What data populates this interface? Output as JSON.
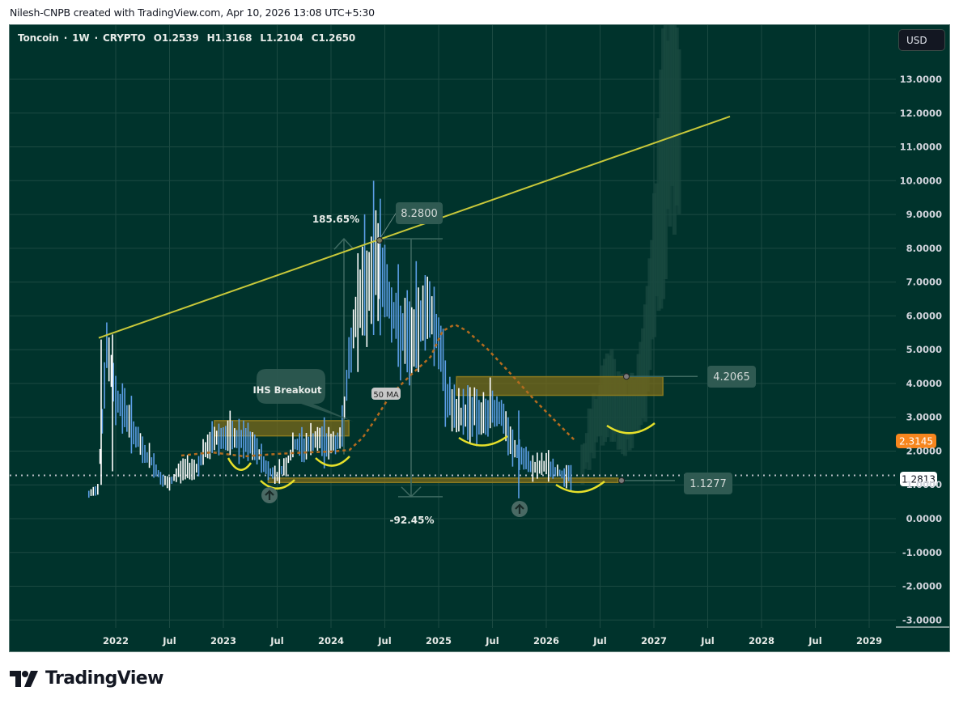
{
  "credit": "Nilesh-CNPB created with TradingView.com, Apr 10, 2026 13:08 UTC+5:30",
  "legend": {
    "symbol": "Toncoin",
    "interval": "1W",
    "exchange": "CRYPTO",
    "open": "O1.2539",
    "high": "H1.3168",
    "low": "L1.2104",
    "close": "C1.2650",
    "sep": "·"
  },
  "currency_button": "USD",
  "branding": "TradingView",
  "colors": {
    "background": "#00332c",
    "grid": "#1c4a42",
    "up_bar": "#ffffff",
    "down_bar": "#5b9ee6",
    "trendline": "#c8c83a",
    "zone_fill": "#7a6a1a",
    "ma_line": "#b36b1f",
    "current_price_tag": "#ffffff",
    "ma_price_tag": "#f7861e"
  },
  "chart_data": {
    "type": "bar",
    "title": "Toncoin · 1W · CRYPTO",
    "xlabel": "",
    "ylabel": "USD",
    "ylim": [
      -3,
      13.5
    ],
    "grid": true,
    "legend_position": "top-left",
    "x_ticks": [
      "2022",
      "Jul",
      "2023",
      "Jul",
      "2024",
      "Jul",
      "2025",
      "Jul",
      "2026",
      "Jul",
      "2027",
      "Jul",
      "2028",
      "Jul",
      "2029"
    ],
    "y_ticks": [
      "13.0000",
      "12.0000",
      "11.0000",
      "10.0000",
      "9.0000",
      "8.0000",
      "7.0000",
      "6.0000",
      "5.0000",
      "4.0000",
      "3.0000",
      "2.0000",
      "1.0000",
      "0.0000",
      "-1.0000",
      "-2.0000",
      "-3.0000"
    ],
    "ohlc_summary": {
      "open": 1.2539,
      "high": 1.3168,
      "low": 1.2104,
      "close": 1.265
    },
    "price_path": [
      {
        "t": "2021-10",
        "v": 0.7
      },
      {
        "t": "2021-11",
        "v": 0.9
      },
      {
        "t": "2021-12",
        "v": 5.0
      },
      {
        "t": "2022-01",
        "v": 3.6
      },
      {
        "t": "2022-02",
        "v": 3.2
      },
      {
        "t": "2022-03",
        "v": 2.6
      },
      {
        "t": "2022-04",
        "v": 2.0
      },
      {
        "t": "2022-05",
        "v": 1.7
      },
      {
        "t": "2022-06",
        "v": 1.2
      },
      {
        "t": "2022-07",
        "v": 1.0
      },
      {
        "t": "2022-08",
        "v": 1.4
      },
      {
        "t": "2022-09",
        "v": 1.5
      },
      {
        "t": "2022-10",
        "v": 1.5
      },
      {
        "t": "2022-11",
        "v": 2.0
      },
      {
        "t": "2022-12",
        "v": 2.4
      },
      {
        "t": "2023-01",
        "v": 2.4
      },
      {
        "t": "2023-02",
        "v": 2.4
      },
      {
        "t": "2023-03",
        "v": 2.3
      },
      {
        "t": "2023-04",
        "v": 2.2
      },
      {
        "t": "2023-05",
        "v": 1.9
      },
      {
        "t": "2023-06",
        "v": 1.4
      },
      {
        "t": "2023-07",
        "v": 1.3
      },
      {
        "t": "2023-08",
        "v": 1.6
      },
      {
        "t": "2023-09",
        "v": 2.2
      },
      {
        "t": "2023-10",
        "v": 2.1
      },
      {
        "t": "2023-11",
        "v": 2.3
      },
      {
        "t": "2023-12",
        "v": 2.3
      },
      {
        "t": "2024-01",
        "v": 2.2
      },
      {
        "t": "2024-02",
        "v": 2.3
      },
      {
        "t": "2024-03",
        "v": 4.5
      },
      {
        "t": "2024-04",
        "v": 6.5
      },
      {
        "t": "2024-05",
        "v": 6.8
      },
      {
        "t": "2024-06",
        "v": 7.8
      },
      {
        "t": "2024-07",
        "v": 7.0
      },
      {
        "t": "2024-08",
        "v": 6.0
      },
      {
        "t": "2024-09",
        "v": 5.4
      },
      {
        "t": "2024-10",
        "v": 5.2
      },
      {
        "t": "2024-11",
        "v": 6.0
      },
      {
        "t": "2024-12",
        "v": 6.3
      },
      {
        "t": "2025-01",
        "v": 5.3
      },
      {
        "t": "2025-02",
        "v": 3.6
      },
      {
        "t": "2025-03",
        "v": 3.0
      },
      {
        "t": "2025-04",
        "v": 3.1
      },
      {
        "t": "2025-05",
        "v": 3.2
      },
      {
        "t": "2025-06",
        "v": 2.9
      },
      {
        "t": "2025-07",
        "v": 3.3
      },
      {
        "t": "2025-08",
        "v": 3.1
      },
      {
        "t": "2025-09",
        "v": 2.2
      },
      {
        "t": "2025-10",
        "v": 1.9
      },
      {
        "t": "2025-11",
        "v": 1.6
      },
      {
        "t": "2025-12",
        "v": 1.5
      },
      {
        "t": "2026-01",
        "v": 1.6
      },
      {
        "t": "2026-02",
        "v": 1.4
      },
      {
        "t": "2026-03",
        "v": 1.3
      },
      {
        "t": "2026-04",
        "v": 1.27
      }
    ],
    "projection_path": [
      {
        "t": "2026-05",
        "v": 1.6
      },
      {
        "t": "2026-06",
        "v": 2.6
      },
      {
        "t": "2026-07",
        "v": 3.2
      },
      {
        "t": "2026-08",
        "v": 3.8
      },
      {
        "t": "2026-09",
        "v": 3.2
      },
      {
        "t": "2026-10",
        "v": 3.0
      },
      {
        "t": "2026-11",
        "v": 3.4
      },
      {
        "t": "2026-12",
        "v": 4.6
      },
      {
        "t": "2027-01",
        "v": 7.5
      },
      {
        "t": "2027-02",
        "v": 10.5
      },
      {
        "t": "2027-03",
        "v": 12.8
      },
      {
        "t": "2027-04",
        "v": 11.0
      }
    ],
    "annotations": {
      "trendline": {
        "from": {
          "t": "2021-12",
          "v": 5.3
        },
        "to": {
          "t": "2027-07",
          "v": 11.9
        }
      },
      "ath_label": "8.2800",
      "rise_pct": "185.65%",
      "drop_pct": "-92.45%",
      "resistance_label": "4.2065",
      "support_label": "1.1277",
      "ihs_label": "IHS Breakout",
      "ma_label": "50 MA",
      "current_price": "1.2813",
      "ma_price": "2.3145",
      "zones": [
        {
          "name": "ihs-neckline-zone",
          "from": "2022-12",
          "to": "2024-03",
          "low": 2.45,
          "high": 2.9
        },
        {
          "name": "resistance-zone",
          "from": "2025-03",
          "to": "2027-02",
          "low": 3.65,
          "high": 4.2
        },
        {
          "name": "support-zone",
          "from": "2023-06",
          "to": "2026-09",
          "low": 1.07,
          "high": 1.2
        }
      ]
    }
  }
}
